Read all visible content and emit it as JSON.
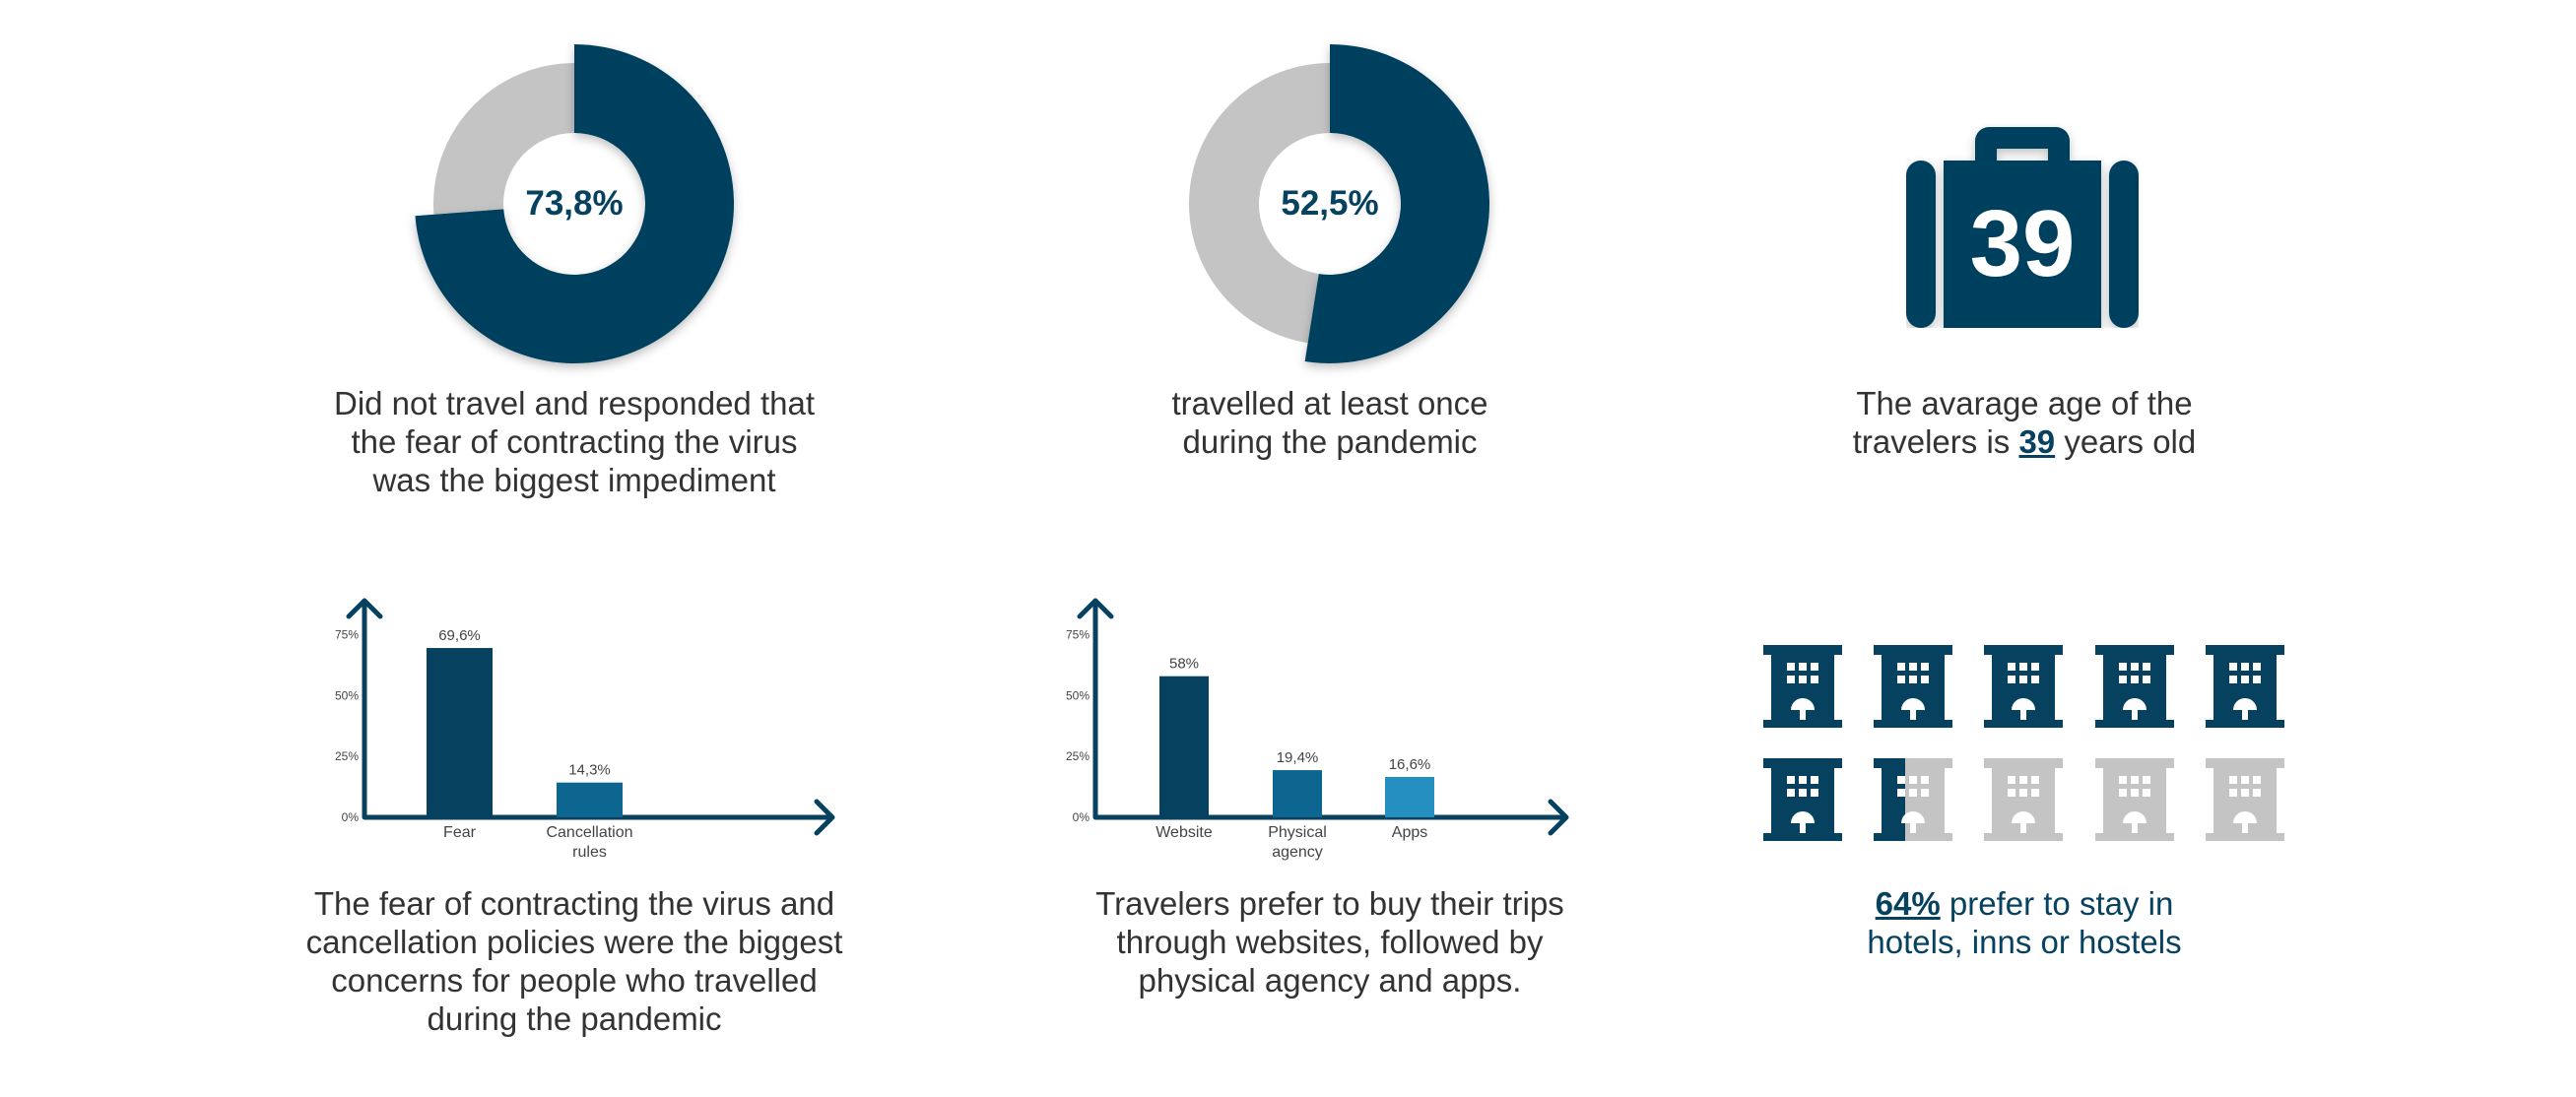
{
  "colors": {
    "primary": "#06415F",
    "mid": "#0C6690",
    "light_blue": "#2590BF",
    "grey": "#C4C4C4",
    "text": "#333333"
  },
  "donut1": {
    "label": "73,8%",
    "fraction": 0.738,
    "caption": "Did not travel and responded that\nthe fear of contracting the virus\nwas the biggest impediment"
  },
  "donut2": {
    "label": "52,5%",
    "fraction": 0.525,
    "caption": "travelled at least once\nduring the pandemic"
  },
  "age": {
    "icon": "suitcase-icon",
    "number": "39",
    "caption_pre": "The avarage age of the\ntravelers is ",
    "caption_num": "39",
    "caption_post": " years old"
  },
  "chart_data": [
    {
      "type": "bar",
      "categories": [
        "Fear",
        "Cancellation rules"
      ],
      "category_lines": [
        [
          "Fear"
        ],
        [
          "Cancellation",
          "rules"
        ]
      ],
      "values": [
        69.6,
        14.3
      ],
      "value_labels": [
        "69,6%",
        "14,3%"
      ],
      "yticks": [
        "0%",
        "25%",
        "50%",
        "75%"
      ],
      "ytick_values": [
        0,
        25,
        50,
        75
      ],
      "ylim": [
        0,
        85
      ],
      "bar_colors": [
        "#06415F",
        "#0C6690"
      ],
      "title": "",
      "xlabel": "",
      "ylabel": ""
    },
    {
      "type": "bar",
      "categories": [
        "Website",
        "Physical agency",
        "Apps"
      ],
      "category_lines": [
        [
          "Website"
        ],
        [
          "Physical",
          "agency"
        ],
        [
          "Apps"
        ]
      ],
      "values": [
        58,
        19.4,
        16.6
      ],
      "value_labels": [
        "58%",
        "19,4%",
        "16,6%"
      ],
      "yticks": [
        "0%",
        "25%",
        "50%",
        "75%"
      ],
      "ytick_values": [
        0,
        25,
        50,
        75
      ],
      "ylim": [
        0,
        85
      ],
      "bar_colors": [
        "#06415F",
        "#0C6690",
        "#2590BF"
      ],
      "title": "",
      "xlabel": "",
      "ylabel": ""
    }
  ],
  "chart1_caption": "The fear of contracting the virus and\ncancellation policies were the biggest\nconcerns for people who travelled\nduring the pandemic",
  "chart2_caption": "Travelers prefer to buy their trips\nthrough websites, followed by\nphysical agency and apps.",
  "hotels": {
    "icon": "hotel-building-icon",
    "total": 10,
    "filled_fraction": 0.64,
    "caption_pct": "64%",
    "caption_rest": " prefer to stay in\nhotels, inns or hostels"
  }
}
